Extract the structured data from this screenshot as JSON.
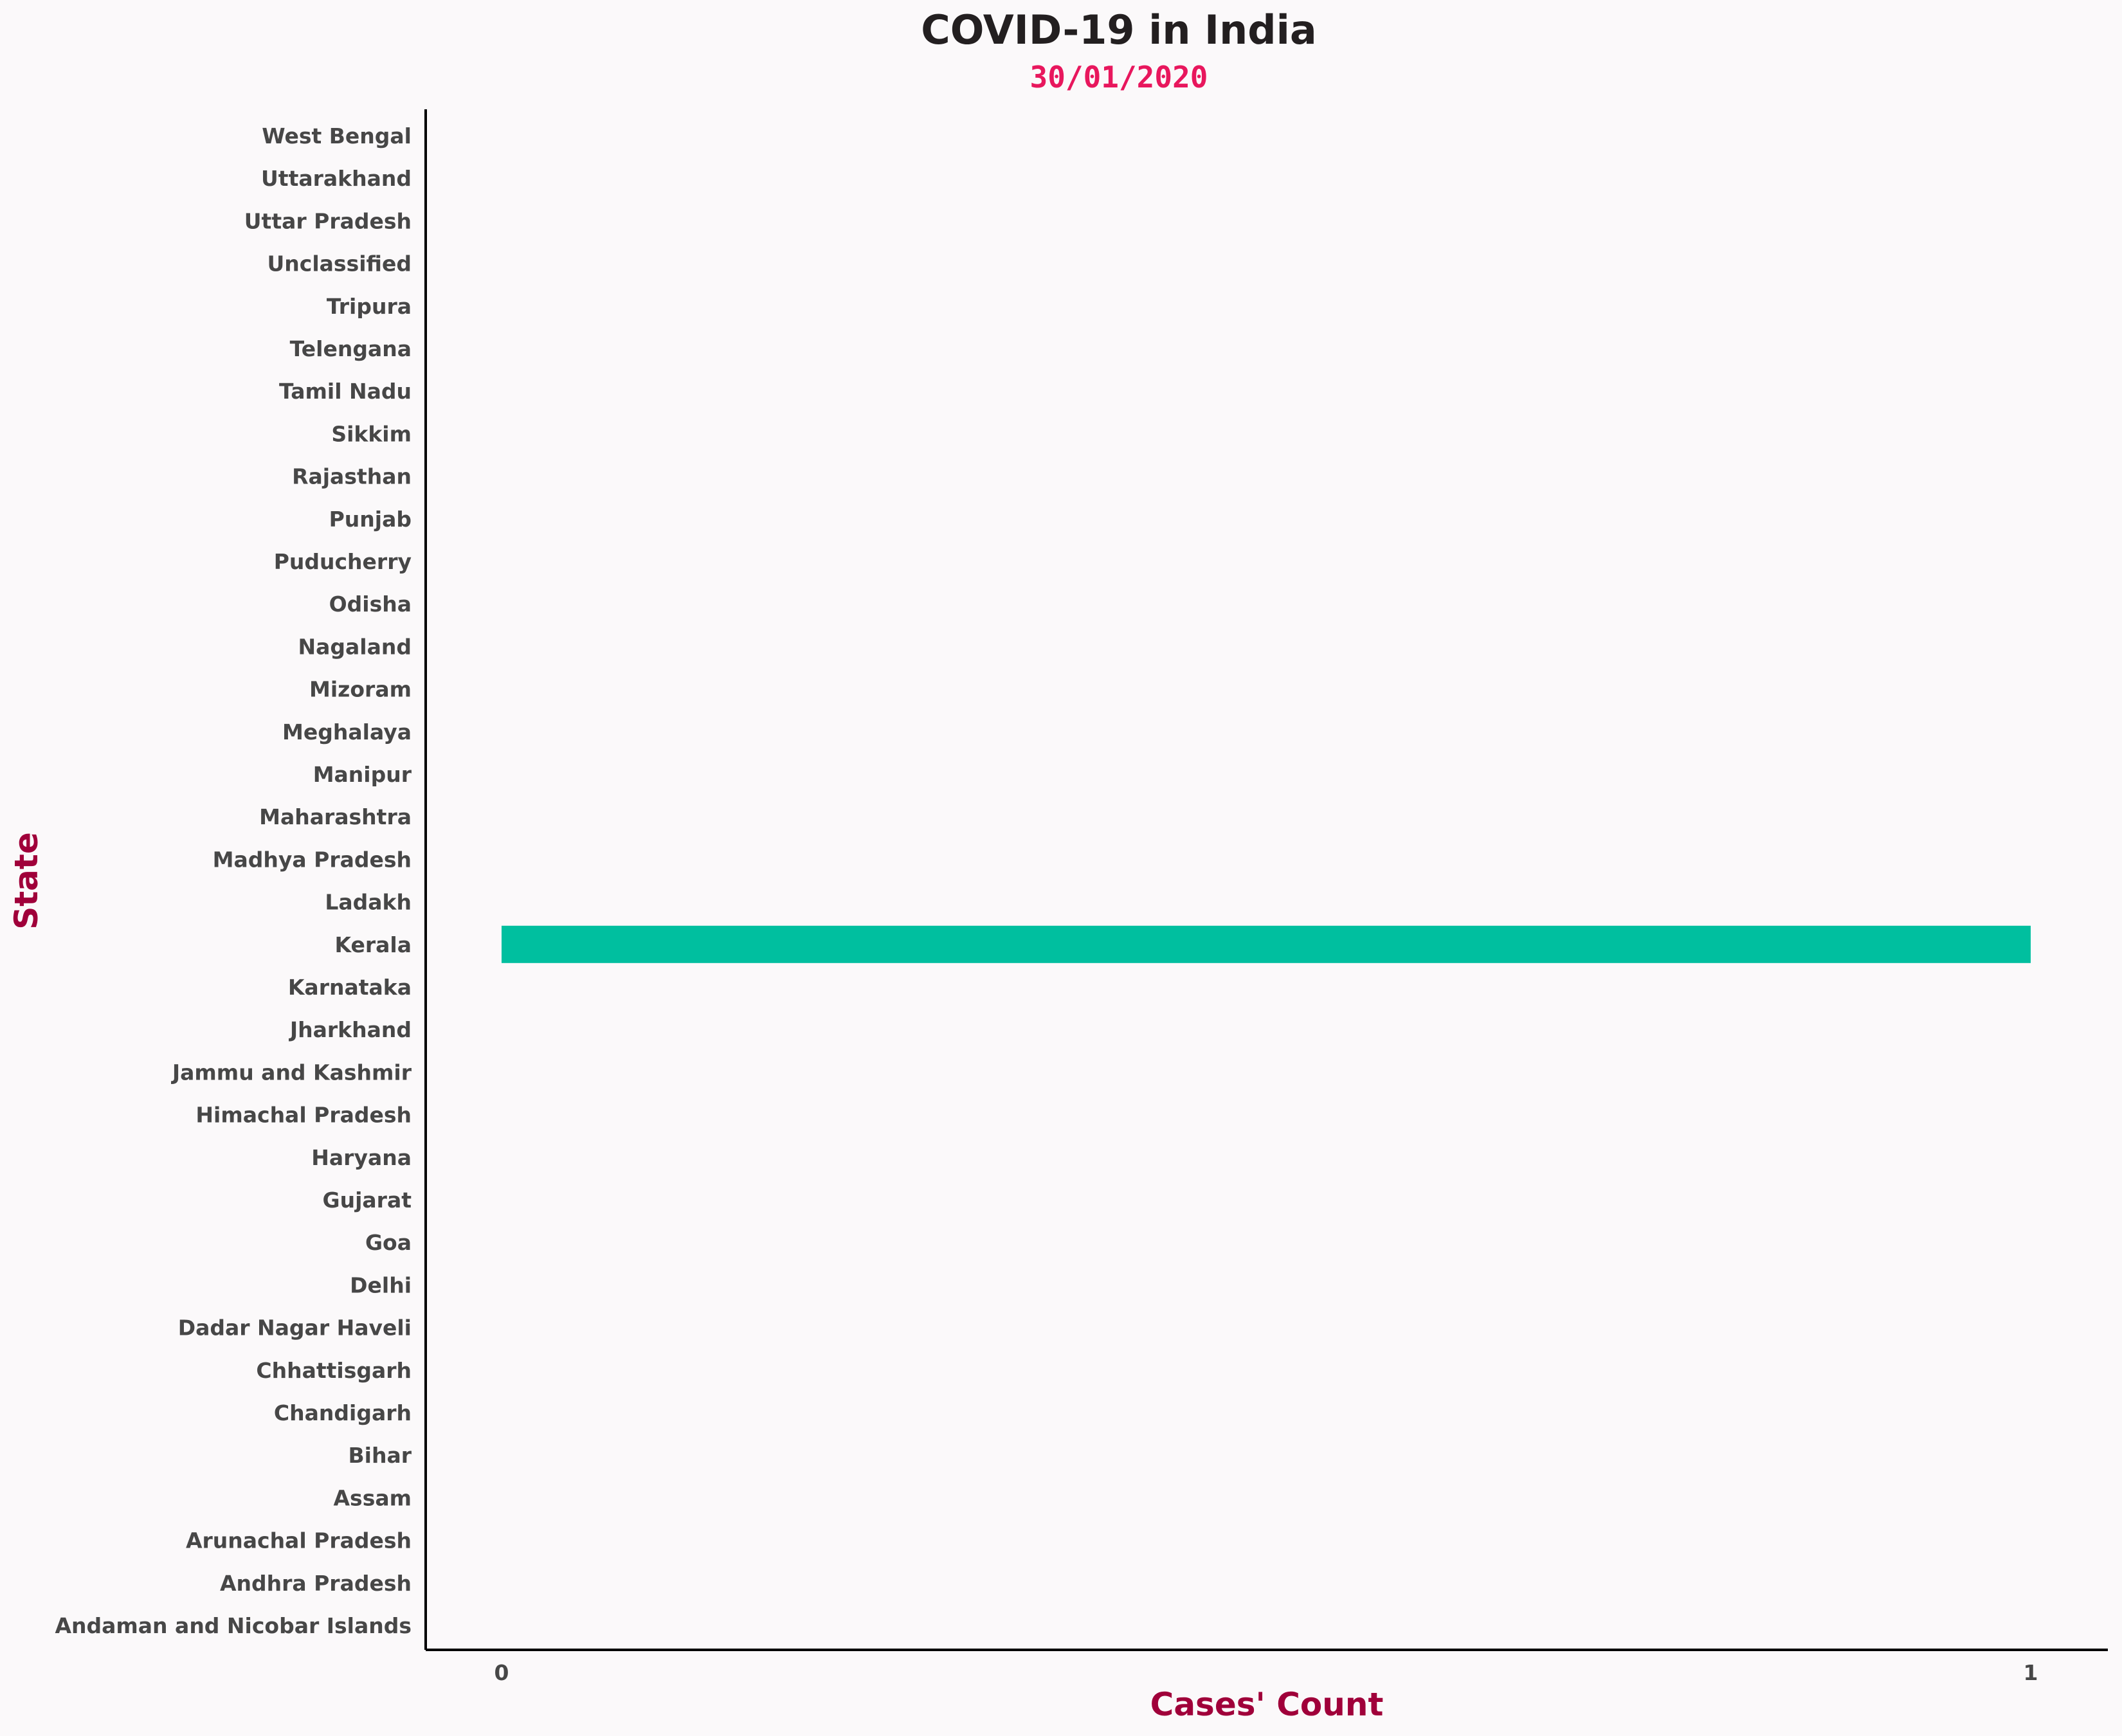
{
  "chart_data": {
    "type": "bar",
    "orientation": "horizontal",
    "title": "COVID-19 in India",
    "subtitle": "30/01/2020",
    "xlabel": "Cases' Count",
    "ylabel": "State",
    "xlim": [
      0,
      1
    ],
    "xticks": [
      "0",
      "1"
    ],
    "grid": false,
    "legend": "none",
    "categories": [
      "Andaman and Nicobar Islands",
      "Andhra Pradesh",
      "Arunachal Pradesh",
      "Assam",
      "Bihar",
      "Chandigarh",
      "Chhattisgarh",
      "Dadar Nagar Haveli",
      "Delhi",
      "Goa",
      "Gujarat",
      "Haryana",
      "Himachal Pradesh",
      "Jammu and Kashmir",
      "Jharkhand",
      "Karnataka",
      "Kerala",
      "Ladakh",
      "Madhya Pradesh",
      "Maharashtra",
      "Manipur",
      "Meghalaya",
      "Mizoram",
      "Nagaland",
      "Odisha",
      "Puducherry",
      "Punjab",
      "Rajasthan",
      "Sikkim",
      "Tamil Nadu",
      "Telengana",
      "Tripura",
      "Unclassified",
      "Uttar Pradesh",
      "Uttarakhand",
      "West Bengal"
    ],
    "values": [
      0,
      0,
      0,
      0,
      0,
      0,
      0,
      0,
      0,
      0,
      0,
      0,
      0,
      0,
      0,
      0,
      1,
      0,
      0,
      0,
      0,
      0,
      0,
      0,
      0,
      0,
      0,
      0,
      0,
      0,
      0,
      0,
      0,
      0,
      0,
      0
    ],
    "colors": {
      "bar": "#00bf9f",
      "title": "#231f20",
      "subtitle": "#e8175d",
      "axis_label": "#a0003a",
      "tick_label": "#474747",
      "axis_line": "#000000",
      "background": "#fbf9fa"
    }
  }
}
